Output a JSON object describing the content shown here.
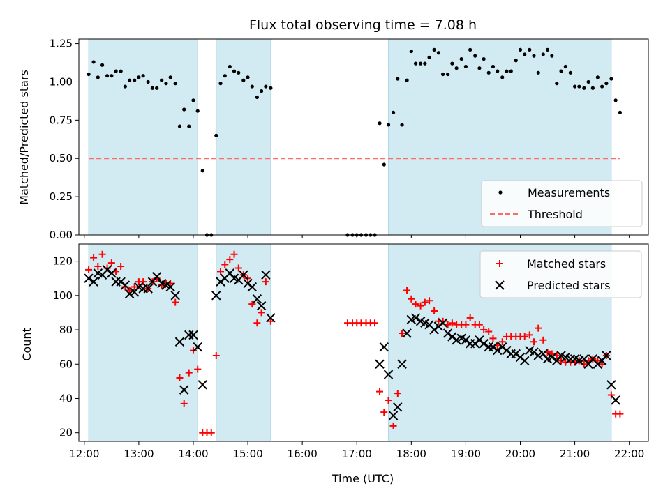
{
  "chart_data": {
    "title": "Flux total observing time = 7.08 h",
    "xlabel": "Time (UTC)",
    "x_tick_labels": [
      "12:00",
      "13:00",
      "14:00",
      "15:00",
      "16:00",
      "17:00",
      "18:00",
      "19:00",
      "20:00",
      "21:00",
      "22:00"
    ],
    "xlim_hours": [
      11.9,
      22.35
    ],
    "shaded_intervals_hours": [
      [
        12.08,
        14.08
      ],
      [
        14.42,
        15.42
      ],
      [
        17.58,
        21.67
      ]
    ],
    "colors": {
      "shade": "#add8e6",
      "measurements": "#000000",
      "threshold": "#ff6b6b",
      "matched": "#ff0000",
      "predicted": "#000000"
    },
    "panels": [
      {
        "type": "scatter",
        "ylabel": "Matched/Predicted stars",
        "ylim": [
          0,
          1.28
        ],
        "yticks": [
          0.0,
          0.25,
          0.5,
          0.75,
          1.0,
          1.25
        ],
        "y_tick_labels": [
          "0.00",
          "0.25",
          "0.50",
          "0.75",
          "1.00",
          "1.25"
        ],
        "legend_position": "lower-right",
        "threshold": {
          "name": "Threshold",
          "value": 0.5,
          "x_range_hours": [
            12.08,
            21.83
          ]
        },
        "series": [
          {
            "name": "Measurements",
            "marker": "dot",
            "x": [
              12.08,
              12.17,
              12.25,
              12.33,
              12.42,
              12.5,
              12.58,
              12.67,
              12.75,
              12.83,
              12.92,
              13.0,
              13.08,
              13.17,
              13.25,
              13.33,
              13.42,
              13.5,
              13.58,
              13.67,
              13.75,
              13.83,
              13.92,
              14.0,
              14.08,
              14.17,
              14.25,
              14.33,
              14.42,
              14.5,
              14.58,
              14.67,
              14.75,
              14.83,
              14.92,
              15.0,
              15.08,
              15.17,
              15.25,
              15.33,
              15.42,
              16.83,
              16.92,
              17.0,
              17.08,
              17.17,
              17.25,
              17.33,
              17.42,
              17.5,
              17.58,
              17.67,
              17.75,
              17.83,
              17.92,
              18.0,
              18.08,
              18.17,
              18.25,
              18.33,
              18.42,
              18.5,
              18.58,
              18.67,
              18.75,
              18.83,
              18.92,
              19.0,
              19.08,
              19.17,
              19.25,
              19.33,
              19.42,
              19.5,
              19.58,
              19.67,
              19.75,
              19.83,
              19.92,
              20.0,
              20.08,
              20.17,
              20.25,
              20.33,
              20.42,
              20.5,
              20.58,
              20.67,
              20.75,
              20.83,
              20.92,
              21.0,
              21.08,
              21.17,
              21.25,
              21.33,
              21.42,
              21.5,
              21.58,
              21.67,
              21.75,
              21.83
            ],
            "y": [
              1.05,
              1.13,
              1.03,
              1.11,
              1.04,
              1.04,
              1.07,
              1.07,
              0.97,
              1.01,
              1.01,
              1.03,
              1.04,
              1.0,
              0.96,
              0.96,
              1.01,
              0.99,
              1.03,
              0.99,
              0.71,
              0.82,
              0.71,
              0.88,
              0.81,
              0.42,
              0.0,
              0.0,
              0.65,
              0.99,
              1.04,
              1.1,
              1.07,
              1.06,
              1.01,
              1.03,
              0.97,
              0.9,
              0.94,
              0.97,
              0.96,
              0.0,
              0.0,
              0.0,
              0.0,
              0.0,
              0.0,
              0.0,
              0.73,
              0.46,
              0.72,
              0.8,
              1.02,
              0.72,
              1.01,
              1.2,
              1.12,
              1.12,
              1.12,
              1.16,
              1.21,
              1.19,
              1.05,
              1.05,
              1.12,
              1.09,
              1.15,
              1.1,
              1.21,
              1.17,
              1.09,
              1.15,
              1.06,
              1.1,
              1.07,
              1.03,
              1.07,
              1.07,
              1.14,
              1.21,
              1.18,
              1.21,
              1.17,
              1.06,
              1.18,
              1.21,
              1.17,
              0.99,
              1.07,
              1.1,
              1.06,
              0.97,
              0.97,
              0.96,
              1.0,
              0.96,
              1.03,
              0.97,
              0.99,
              1.02,
              0.88,
              0.8
            ]
          }
        ]
      },
      {
        "type": "scatter",
        "ylabel": "Count",
        "ylim": [
          15,
          130
        ],
        "yticks": [
          20,
          40,
          60,
          80,
          100,
          120
        ],
        "y_tick_labels": [
          "20",
          "40",
          "60",
          "80",
          "100",
          "120"
        ],
        "legend_position": "upper-right",
        "series": [
          {
            "name": "Matched stars",
            "marker": "plus",
            "x": [
              12.08,
              12.17,
              12.25,
              12.33,
              12.42,
              12.5,
              12.58,
              12.67,
              12.75,
              12.83,
              12.92,
              13.0,
              13.08,
              13.17,
              13.25,
              13.33,
              13.42,
              13.5,
              13.58,
              13.67,
              13.75,
              13.83,
              13.92,
              14.0,
              14.08,
              14.17,
              14.25,
              14.33,
              14.42,
              14.5,
              14.58,
              14.67,
              14.75,
              14.83,
              14.92,
              15.0,
              15.08,
              15.17,
              15.25,
              15.33,
              15.42,
              16.83,
              16.92,
              17.0,
              17.08,
              17.17,
              17.25,
              17.33,
              17.42,
              17.5,
              17.58,
              17.67,
              17.75,
              17.83,
              17.92,
              18.0,
              18.08,
              18.17,
              18.25,
              18.33,
              18.42,
              18.5,
              18.58,
              18.67,
              18.75,
              18.83,
              18.92,
              19.0,
              19.08,
              19.17,
              19.25,
              19.33,
              19.42,
              19.5,
              19.58,
              19.67,
              19.75,
              19.83,
              19.92,
              20.0,
              20.08,
              20.17,
              20.25,
              20.33,
              20.42,
              20.5,
              20.58,
              20.67,
              20.75,
              20.83,
              20.92,
              21.0,
              21.08,
              21.17,
              21.25,
              21.33,
              21.42,
              21.5,
              21.58,
              21.67,
              21.75,
              21.83
            ],
            "y": [
              115,
              122,
              117,
              124,
              116,
              119,
              114,
              117,
              105,
              103,
              105,
              108,
              108,
              104,
              108,
              110,
              106,
              107,
              107,
              96,
              52,
              37,
              55,
              68,
              57,
              20,
              20,
              20,
              65,
              114,
              118,
              121,
              124,
              116,
              112,
              110,
              95,
              84,
              90,
              108,
              85,
              84,
              84,
              84,
              84,
              84,
              84,
              84,
              44,
              32,
              39,
              24,
              43,
              78,
              103,
              98,
              95,
              94,
              96,
              97,
              91,
              85,
              85,
              83,
              84,
              83,
              83,
              83,
              87,
              83,
              83,
              80,
              79,
              75,
              71,
              73,
              76,
              76,
              76,
              76,
              76,
              77,
              73,
              81,
              74,
              67,
              66,
              65,
              62,
              61,
              61,
              61,
              62,
              60,
              62,
              63,
              62,
              60,
              65,
              42,
              31,
              31
            ]
          },
          {
            "name": "Predicted stars",
            "marker": "x",
            "x": [
              12.08,
              12.17,
              12.25,
              12.33,
              12.42,
              12.5,
              12.58,
              12.67,
              12.75,
              12.83,
              12.92,
              13.0,
              13.08,
              13.17,
              13.25,
              13.33,
              13.42,
              13.5,
              13.58,
              13.67,
              13.75,
              13.83,
              13.92,
              14.0,
              14.08,
              14.17,
              14.42,
              14.5,
              14.58,
              14.67,
              14.75,
              14.83,
              14.92,
              15.0,
              15.08,
              15.17,
              15.25,
              15.33,
              15.42,
              17.42,
              17.5,
              17.58,
              17.67,
              17.75,
              17.83,
              17.92,
              18.0,
              18.08,
              18.17,
              18.25,
              18.33,
              18.42,
              18.5,
              18.58,
              18.67,
              18.75,
              18.83,
              18.92,
              19.0,
              19.08,
              19.17,
              19.25,
              19.33,
              19.42,
              19.5,
              19.58,
              19.67,
              19.75,
              19.83,
              19.92,
              20.0,
              20.08,
              20.17,
              20.25,
              20.33,
              20.42,
              20.5,
              20.58,
              20.67,
              20.75,
              20.83,
              20.92,
              21.0,
              21.08,
              21.17,
              21.25,
              21.33,
              21.42,
              21.5,
              21.58,
              21.67,
              21.75
            ],
            "y": [
              110,
              108,
              113,
              112,
              115,
              113,
              108,
              108,
              106,
              101,
              102,
              105,
              104,
              104,
              108,
              111,
              107,
              106,
              105,
              100,
              73,
              45,
              77,
              77,
              70,
              48,
              100,
              108,
              110,
              113,
              110,
              109,
              112,
              107,
              105,
              98,
              94,
              112,
              87,
              60,
              70,
              54,
              30,
              35,
              60,
              78,
              86,
              87,
              85,
              84,
              83,
              80,
              82,
              84,
              78,
              76,
              74,
              75,
              74,
              72,
              72,
              74,
              72,
              70,
              70,
              68,
              70,
              68,
              66,
              66,
              64,
              62,
              68,
              67,
              65,
              66,
              63,
              64,
              62,
              65,
              64,
              63,
              63,
              62,
              63,
              60,
              63,
              60,
              62,
              65,
              48,
              39
            ]
          }
        ]
      }
    ]
  }
}
